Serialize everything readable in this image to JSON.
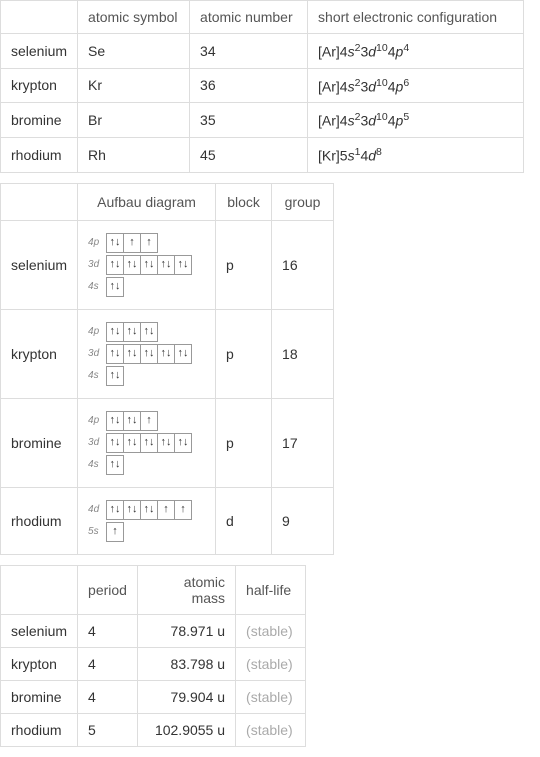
{
  "table1": {
    "headers": [
      "",
      "atomic symbol",
      "atomic number",
      "short electronic configuration"
    ],
    "rows": [
      {
        "name": "selenium",
        "symbol": "Se",
        "number": "34",
        "config": {
          "base": "[Ar]",
          "parts": [
            [
              "4",
              "s",
              "2"
            ],
            [
              "3",
              "d",
              "10"
            ],
            [
              "4",
              "p",
              "4"
            ]
          ]
        }
      },
      {
        "name": "krypton",
        "symbol": "Kr",
        "number": "36",
        "config": {
          "base": "[Ar]",
          "parts": [
            [
              "4",
              "s",
              "2"
            ],
            [
              "3",
              "d",
              "10"
            ],
            [
              "4",
              "p",
              "6"
            ]
          ]
        }
      },
      {
        "name": "bromine",
        "symbol": "Br",
        "number": "35",
        "config": {
          "base": "[Ar]",
          "parts": [
            [
              "4",
              "s",
              "2"
            ],
            [
              "3",
              "d",
              "10"
            ],
            [
              "4",
              "p",
              "5"
            ]
          ]
        }
      },
      {
        "name": "rhodium",
        "symbol": "Rh",
        "number": "45",
        "config": {
          "base": "[Kr]",
          "parts": [
            [
              "5",
              "s",
              "1"
            ],
            [
              "4",
              "d",
              "8"
            ]
          ]
        }
      }
    ]
  },
  "table2": {
    "headers": [
      "",
      "Aufbau diagram",
      "block",
      "group"
    ],
    "rows": [
      {
        "name": "selenium",
        "block": "p",
        "group": "16",
        "orbitals": [
          {
            "label": "4p",
            "boxes": [
              2,
              1,
              1
            ]
          },
          {
            "label": "3d",
            "boxes": [
              2,
              2,
              2,
              2,
              2
            ]
          },
          {
            "label": "4s",
            "boxes": [
              2
            ]
          }
        ]
      },
      {
        "name": "krypton",
        "block": "p",
        "group": "18",
        "orbitals": [
          {
            "label": "4p",
            "boxes": [
              2,
              2,
              2
            ]
          },
          {
            "label": "3d",
            "boxes": [
              2,
              2,
              2,
              2,
              2
            ]
          },
          {
            "label": "4s",
            "boxes": [
              2
            ]
          }
        ]
      },
      {
        "name": "bromine",
        "block": "p",
        "group": "17",
        "orbitals": [
          {
            "label": "4p",
            "boxes": [
              2,
              2,
              1
            ]
          },
          {
            "label": "3d",
            "boxes": [
              2,
              2,
              2,
              2,
              2
            ]
          },
          {
            "label": "4s",
            "boxes": [
              2
            ]
          }
        ]
      },
      {
        "name": "rhodium",
        "block": "d",
        "group": "9",
        "orbitals": [
          {
            "label": "4d",
            "boxes": [
              2,
              2,
              2,
              1,
              1
            ]
          },
          {
            "label": "5s",
            "boxes": [
              1
            ]
          }
        ]
      }
    ]
  },
  "table3": {
    "headers": [
      "",
      "period",
      "atomic mass",
      "half-life"
    ],
    "rows": [
      {
        "name": "selenium",
        "period": "4",
        "mass": "78.971 u",
        "half": "(stable)"
      },
      {
        "name": "krypton",
        "period": "4",
        "mass": "83.798 u",
        "half": "(stable)"
      },
      {
        "name": "bromine",
        "period": "4",
        "mass": "79.904 u",
        "half": "(stable)"
      },
      {
        "name": "rhodium",
        "period": "5",
        "mass": "102.9055 u",
        "half": "(stable)"
      }
    ]
  },
  "arrows": {
    "up": "↑",
    "down": "↓",
    "pair": "↑↓"
  }
}
